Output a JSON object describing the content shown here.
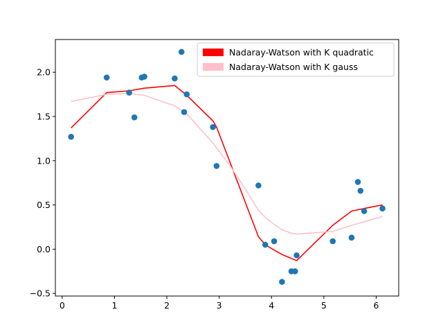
{
  "chart_data": {
    "type": "scatter",
    "title": "",
    "xlabel": "",
    "ylabel": "",
    "xlim": [
      -0.13,
      6.43
    ],
    "ylim": [
      -0.53,
      2.37
    ],
    "xticks": [
      0,
      1,
      2,
      3,
      4,
      5,
      6
    ],
    "xtick_labels": [
      "0",
      "1",
      "2",
      "3",
      "4",
      "5",
      "6"
    ],
    "yticks": [
      -0.5,
      0.0,
      0.5,
      1.0,
      1.5,
      2.0
    ],
    "ytick_labels": [
      "−0.5",
      "0.0",
      "0.5",
      "1.0",
      "1.5",
      "2.0"
    ],
    "grid": false,
    "legend_placement": "top-right",
    "scatter": {
      "color": "#1f77b4",
      "points": [
        [
          0.17,
          1.27
        ],
        [
          0.85,
          1.94
        ],
        [
          1.28,
          1.77
        ],
        [
          1.38,
          1.49
        ],
        [
          1.52,
          1.94
        ],
        [
          1.57,
          1.95
        ],
        [
          2.15,
          1.93
        ],
        [
          2.28,
          2.23
        ],
        [
          2.33,
          1.55
        ],
        [
          2.38,
          1.75
        ],
        [
          2.88,
          1.38
        ],
        [
          2.95,
          0.94
        ],
        [
          3.75,
          0.72
        ],
        [
          3.88,
          0.05
        ],
        [
          4.05,
          0.09
        ],
        [
          4.2,
          -0.37
        ],
        [
          4.38,
          -0.25
        ],
        [
          4.45,
          -0.25
        ],
        [
          4.48,
          -0.07
        ],
        [
          5.17,
          0.09
        ],
        [
          5.53,
          0.13
        ],
        [
          5.65,
          0.76
        ],
        [
          5.7,
          0.66
        ],
        [
          5.77,
          0.43
        ],
        [
          6.12,
          0.46
        ]
      ]
    },
    "series": [
      {
        "name": "Nadaray-Watson with K quadratic",
        "color": "#ff0000",
        "x": [
          0.17,
          0.85,
          1.28,
          1.57,
          2.15,
          2.38,
          2.88,
          2.95,
          3.75,
          3.88,
          4.05,
          4.2,
          4.48,
          5.17,
          5.53,
          5.77,
          6.12
        ],
        "y": [
          1.37,
          1.77,
          1.79,
          1.82,
          1.85,
          1.74,
          1.45,
          1.38,
          0.14,
          0.05,
          -0.01,
          -0.06,
          -0.13,
          0.27,
          0.43,
          0.46,
          0.5
        ]
      },
      {
        "name": "Nadaray-Watson with K gauss",
        "color": "#ffc0cb",
        "x": [
          0.17,
          0.85,
          1.28,
          1.57,
          2.15,
          2.38,
          2.88,
          3.2,
          3.5,
          3.75,
          3.88,
          4.05,
          4.2,
          4.38,
          4.5,
          5.17,
          5.53,
          5.77,
          6.12
        ],
        "y": [
          1.67,
          1.75,
          1.76,
          1.74,
          1.62,
          1.53,
          1.2,
          0.95,
          0.68,
          0.44,
          0.36,
          0.28,
          0.22,
          0.18,
          0.17,
          0.2,
          0.27,
          0.31,
          0.37
        ]
      }
    ]
  }
}
